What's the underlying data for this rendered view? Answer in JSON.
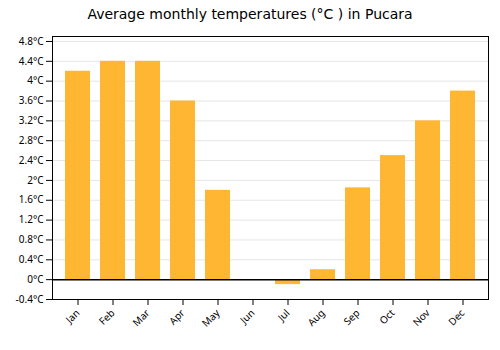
{
  "chart_data": {
    "type": "bar",
    "title": "Average monthly temperatures (°C ) in Pucara",
    "categories": [
      "Jan",
      "Feb",
      "Mar",
      "Apr",
      "May",
      "Jun",
      "Jul",
      "Aug",
      "Sep",
      "Oct",
      "Nov",
      "Dec"
    ],
    "values": [
      4.2,
      4.4,
      4.4,
      3.6,
      1.8,
      0.0,
      -0.1,
      0.2,
      1.85,
      2.5,
      3.2,
      3.8
    ],
    "color": "#FFB733",
    "ylim": [
      -0.4,
      4.9
    ],
    "yticks": [
      {
        "value": -0.4,
        "label": "-0.4°C"
      },
      {
        "value": 0,
        "label": "0°C"
      },
      {
        "value": 0.4,
        "label": "0.4°C"
      },
      {
        "value": 0.8,
        "label": "0.8°C"
      },
      {
        "value": 1.2,
        "label": "1.2°C"
      },
      {
        "value": 1.6,
        "label": "1.6°C"
      },
      {
        "value": 2.0,
        "label": "2°C"
      },
      {
        "value": 2.4,
        "label": "2.4°C"
      },
      {
        "value": 2.8,
        "label": "2.8°C"
      },
      {
        "value": 3.2,
        "label": "3.2°C"
      },
      {
        "value": 3.6,
        "label": "3.6°C"
      },
      {
        "value": 4.0,
        "label": "4°C"
      },
      {
        "value": 4.4,
        "label": "4.4°C"
      },
      {
        "value": 4.8,
        "label": "4.8°C"
      }
    ],
    "grid": true
  }
}
